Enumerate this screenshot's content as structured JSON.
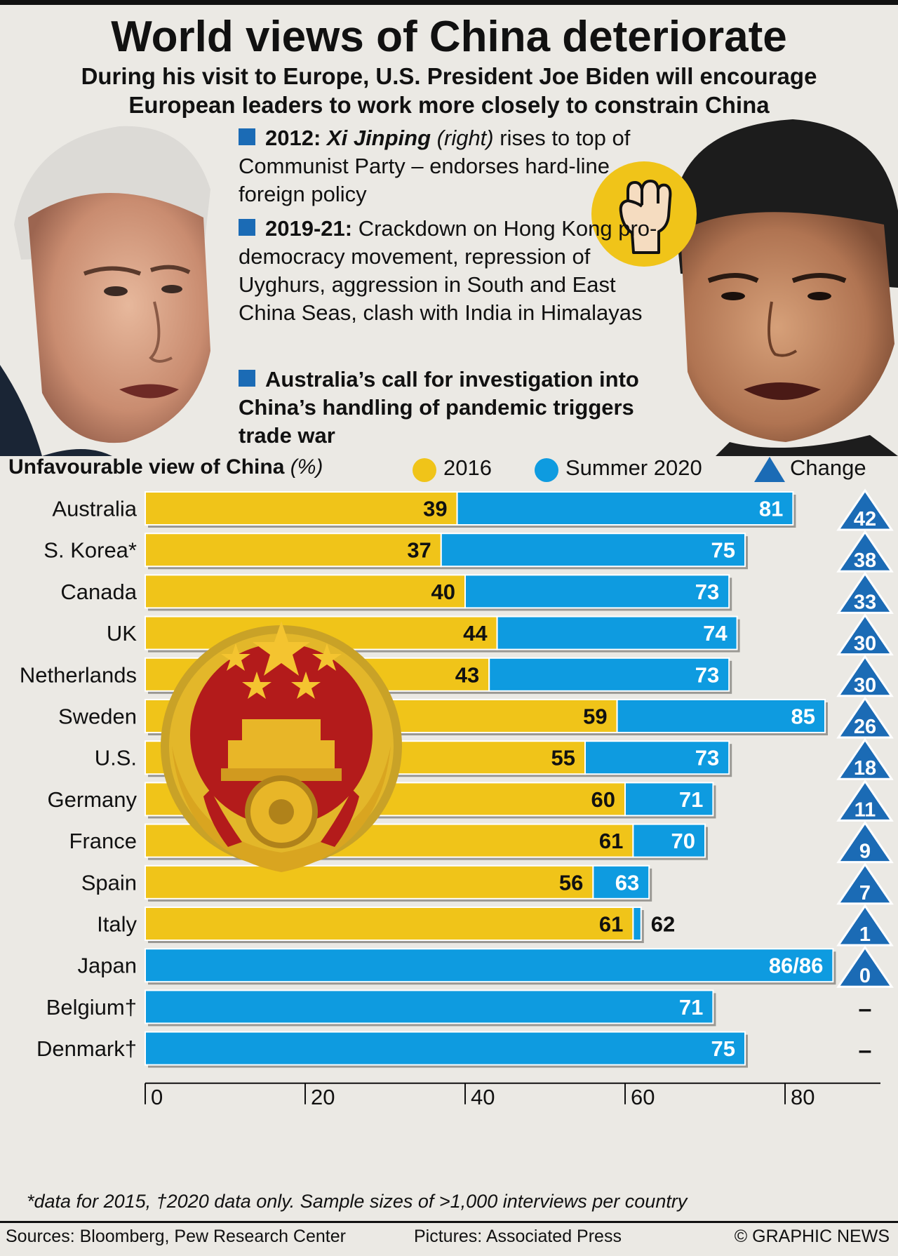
{
  "headline": "World views of China deteriorate",
  "deck": "During his visit to Europe, U.S. President Joe Biden will encourage European leaders to work more closely to constrain China",
  "notes": [
    {
      "year": "2012:",
      "name": "Xi Jinping",
      "aside": "(right)",
      "text": "rises to top of Communist Party – endorses hard-line foreign policy"
    },
    {
      "year": "2019-21:",
      "text": "Crackdown on Hong Kong pro-democracy movement, repression of Uyghurs, aggression in South and East China Seas, clash with India in Himalayas"
    },
    {
      "text": "Australia’s call for investigation into China’s handling of pandemic triggers trade war"
    }
  ],
  "legend": {
    "title": "Unfavourable view of China",
    "unit": "(%)",
    "series_2016": "2016",
    "series_2020": "Summer 2020",
    "change": "Change"
  },
  "colors": {
    "y2016": "#f0c419",
    "y2020": "#0e9be0",
    "change": "#1b6bb5",
    "background": "#ebe9e4"
  },
  "chart_data": {
    "type": "bar",
    "title": "Unfavourable view of China (%)",
    "categories": [
      "Australia",
      "S. Korea*",
      "Canada",
      "UK",
      "Netherlands",
      "Sweden",
      "U.S.",
      "Germany",
      "France",
      "Spain",
      "Italy",
      "Japan",
      "Belgium†",
      "Denmark†"
    ],
    "series": [
      {
        "name": "2016",
        "values": [
          39,
          37,
          40,
          44,
          43,
          59,
          55,
          60,
          61,
          56,
          61,
          86,
          null,
          null
        ]
      },
      {
        "name": "Summer 2020",
        "values": [
          81,
          75,
          73,
          74,
          73,
          85,
          73,
          71,
          70,
          63,
          62,
          86,
          71,
          75
        ]
      }
    ],
    "value_labels_2020": [
      "81",
      "75",
      "73",
      "74",
      "73",
      "85",
      "73",
      "71",
      "70",
      "63",
      "62",
      "86/86",
      "71",
      "75"
    ],
    "change": [
      "42",
      "38",
      "33",
      "30",
      "30",
      "26",
      "18",
      "11",
      "9",
      "7",
      "1",
      "0",
      "–",
      "–"
    ],
    "xticks": [
      "0",
      "20",
      "40",
      "60",
      "80"
    ],
    "xlim": [
      0,
      92
    ]
  },
  "footnote": "*data for 2015, †2020 data only. Sample sizes of >1,000 interviews per country",
  "credits": {
    "sources": "Sources: Bloomberg, Pew Research Center",
    "pictures": "Pictures: Associated Press",
    "copyright": "© GRAPHIC NEWS"
  }
}
